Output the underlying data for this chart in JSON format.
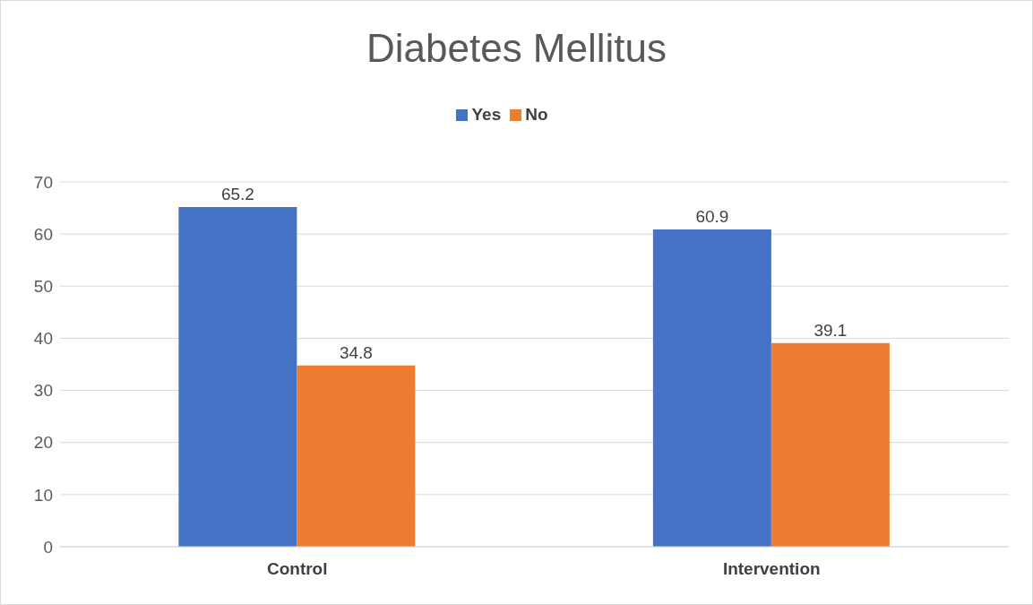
{
  "chart_data": {
    "type": "bar",
    "title": "Diabetes Mellitus",
    "categories": [
      "Control",
      "Intervention"
    ],
    "series": [
      {
        "name": "Yes",
        "color": "#4472c4",
        "values": [
          65.2,
          60.9
        ]
      },
      {
        "name": "No",
        "color": "#ed7d31",
        "values": [
          34.8,
          39.1
        ]
      }
    ],
    "ylim": [
      0,
      70
    ],
    "yticks": [
      0,
      10,
      20,
      30,
      40,
      50,
      60,
      70
    ],
    "grid": "y",
    "legend": "top",
    "data_labels": true
  }
}
